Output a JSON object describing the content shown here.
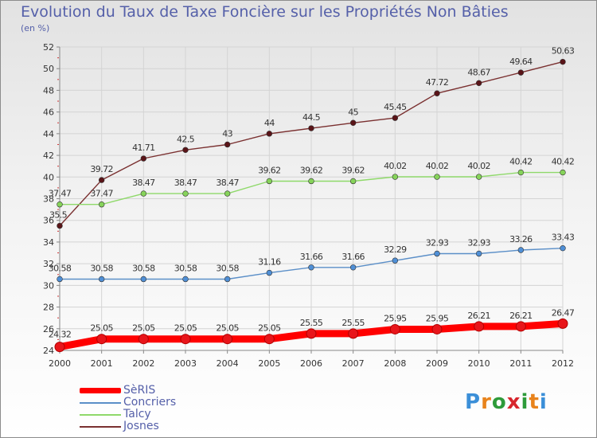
{
  "title": "Evolution du Taux de Taxe Foncière sur les Propriétés Non Bâties",
  "subtitle": "(en %)",
  "logo": {
    "text": "Proxiti",
    "colors": [
      "#3b8fd8",
      "#e8831c",
      "#2e9b3a",
      "#d7262d",
      "#2e9b3a",
      "#e8831c",
      "#3b8fd8"
    ]
  },
  "chart_data": {
    "type": "line",
    "title": "Evolution du Taux de Taxe Foncière sur les Propriétés Non Bâties",
    "ylabel": "(en %)",
    "xlabel": "",
    "x": [
      "2000",
      "2001",
      "2002",
      "2003",
      "2004",
      "2005",
      "2006",
      "2007",
      "2008",
      "2009",
      "2010",
      "2011",
      "2012"
    ],
    "ylim": [
      24,
      52
    ],
    "yticks": [
      "24",
      "26",
      "28",
      "30",
      "32",
      "34",
      "36",
      "38",
      "40",
      "42",
      "44",
      "46",
      "48",
      "50",
      "52"
    ],
    "grid": true,
    "legend_position": "bottom-left",
    "series": [
      {
        "name": "SèRIS",
        "color": "#ff0000",
        "marker": "#e8151a",
        "values": [
          24.32,
          25.05,
          25.05,
          25.05,
          25.05,
          25.05,
          25.55,
          25.55,
          25.95,
          25.95,
          26.21,
          26.21,
          26.47
        ],
        "labels": [
          "24.32",
          "25.05",
          "25.05",
          "25.05",
          "25.05",
          "25.05",
          "25.55",
          "25.55",
          "25.95",
          "25.95",
          "26.21",
          "26.21",
          "26.47"
        ]
      },
      {
        "name": "Concriers",
        "color": "#5b8fc8",
        "marker": "#4f8fd6",
        "values": [
          30.58,
          30.58,
          30.58,
          30.58,
          30.58,
          31.16,
          31.66,
          31.66,
          32.29,
          32.93,
          32.93,
          33.26,
          33.43
        ],
        "labels": [
          "30.58",
          "30.58",
          "30.58",
          "30.58",
          "30.58",
          "31.16",
          "31.66",
          "31.66",
          "32.29",
          "32.93",
          "32.93",
          "33.26",
          "33.43"
        ]
      },
      {
        "name": "Talcy",
        "color": "#8fd96a",
        "marker": "#86d35a",
        "values": [
          37.47,
          37.47,
          38.47,
          38.47,
          38.47,
          39.62,
          39.62,
          39.62,
          40.02,
          40.02,
          40.02,
          40.42,
          40.42
        ],
        "labels": [
          "37.47",
          "37.47",
          "38.47",
          "38.47",
          "38.47",
          "39.62",
          "39.62",
          "39.62",
          "40.02",
          "40.02",
          "40.02",
          "40.42",
          "40.42"
        ]
      },
      {
        "name": "Josnes",
        "color": "#7a3030",
        "marker": "#5a1418",
        "values": [
          35.5,
          39.72,
          41.71,
          42.5,
          43,
          44,
          44.5,
          45,
          45.45,
          47.72,
          48.67,
          49.64,
          50.63
        ],
        "labels": [
          "35.5",
          "39.72",
          "41.71",
          "42.5",
          "43",
          "44",
          "44.5",
          "45",
          "45.45",
          "47.72",
          "48.67",
          "49.64",
          "50.63"
        ]
      }
    ]
  }
}
